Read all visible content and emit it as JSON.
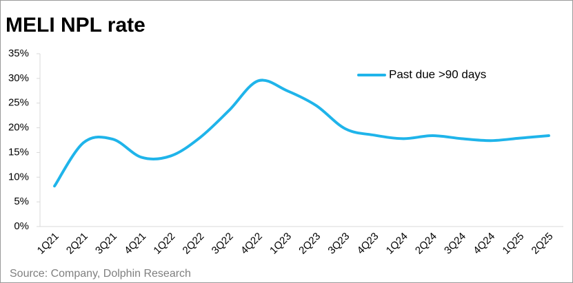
{
  "chart_data": {
    "type": "line",
    "title": "MELI NPL rate",
    "source": "Source: Company, Dolphin Research",
    "categories": [
      "1Q21",
      "2Q21",
      "3Q21",
      "4Q21",
      "1Q22",
      "2Q22",
      "3Q22",
      "4Q22",
      "1Q23",
      "2Q23",
      "3Q23",
      "4Q23",
      "1Q24",
      "2Q24",
      "3Q24",
      "4Q24",
      "1Q25",
      "2Q25"
    ],
    "series": [
      {
        "name": "Past due >90 days",
        "color": "#1fb4ea",
        "values": [
          8.2,
          17,
          17.7,
          14,
          14.3,
          18,
          23.5,
          29.5,
          27.5,
          24.5,
          19.8,
          18.5,
          17.8,
          18.4,
          17.8,
          17.4,
          17.9,
          18.4
        ]
      }
    ],
    "ylim": [
      0,
      35
    ],
    "yticks": [
      {
        "value": 0,
        "label": "0%"
      },
      {
        "value": 5,
        "label": "5%"
      },
      {
        "value": 10,
        "label": "10%"
      },
      {
        "value": 15,
        "label": "15%"
      },
      {
        "value": 20,
        "label": "20%"
      },
      {
        "value": 25,
        "label": "25%"
      },
      {
        "value": 30,
        "label": "30%"
      },
      {
        "value": 35,
        "label": "35%"
      }
    ],
    "legend": "top-right"
  }
}
